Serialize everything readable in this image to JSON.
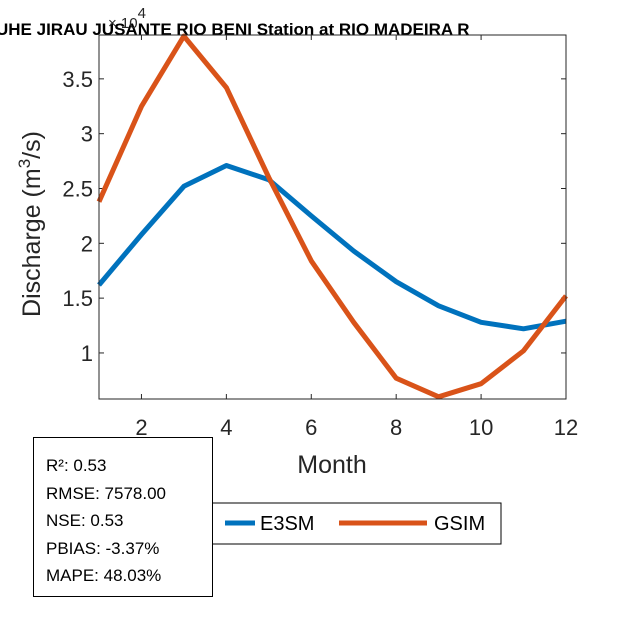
{
  "chart_data": {
    "type": "line",
    "title": "UHE JIRAU JUSANTE RIO BENI  Station at  RIO MADEIRA  R",
    "xlabel": "Month",
    "ylabel": "Discharge (m³/s)",
    "ylabel_parts": {
      "base": "Discharge (m",
      "sup": "3",
      "tail": "/s)"
    },
    "y_exponent_label": "× 10",
    "y_exponent": "4",
    "x": [
      1,
      2,
      3,
      4,
      5,
      6,
      7,
      8,
      9,
      10,
      11,
      12
    ],
    "xlim": [
      1,
      12
    ],
    "ylim": [
      0.58,
      3.9
    ],
    "xticks": [
      2,
      4,
      6,
      8,
      10,
      12
    ],
    "yticks": [
      1,
      1.5,
      2,
      2.5,
      3,
      3.5
    ],
    "series": [
      {
        "name": "E3SM",
        "color": "#0072BD",
        "values": [
          1.62,
          2.08,
          2.52,
          2.71,
          2.58,
          2.25,
          1.93,
          1.65,
          1.43,
          1.28,
          1.22,
          1.29
        ]
      },
      {
        "name": "GSIM",
        "color": "#D95319",
        "values": [
          2.38,
          3.25,
          3.89,
          3.42,
          2.6,
          1.84,
          1.28,
          0.77,
          0.6,
          0.72,
          1.02,
          1.52
        ]
      }
    ],
    "grid": false,
    "legend_location": "bottom"
  },
  "stats": {
    "r2": "R²: 0.53",
    "rmse": "RMSE: 7578.00",
    "nse": "NSE: 0.53",
    "pbias": "PBIAS: -3.37%",
    "mape": "MAPE: 48.03%"
  }
}
